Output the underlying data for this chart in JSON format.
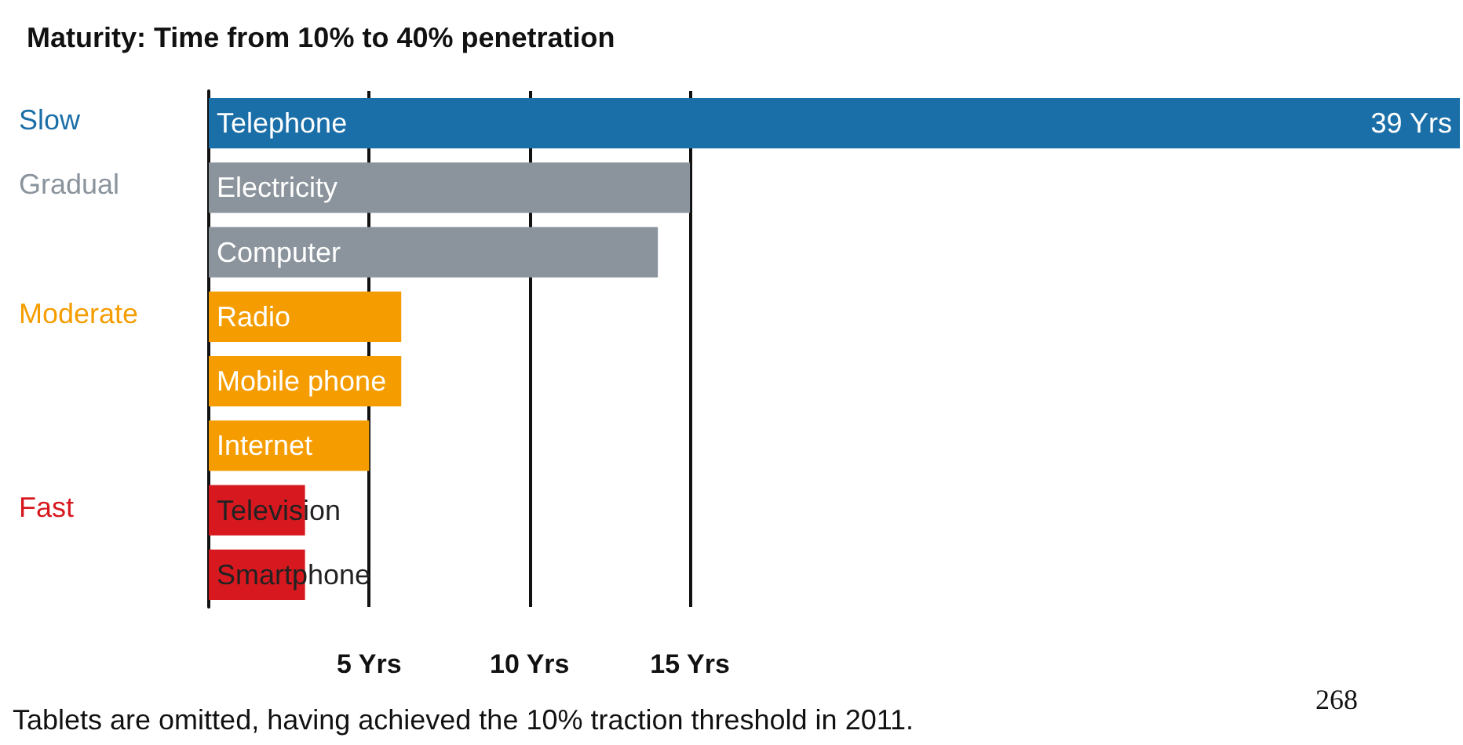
{
  "chart_data": {
    "type": "bar",
    "orientation": "horizontal",
    "title": "Maturity: Time from 10% to 40% penetration",
    "categories": [
      "Telephone",
      "Electricity",
      "Computer",
      "Radio",
      "Mobile phone",
      "Internet",
      "Television",
      "Smartphone"
    ],
    "values": [
      39,
      15,
      14,
      6,
      6,
      5,
      3,
      3
    ],
    "colors": [
      "#1b6fa8",
      "#8b949c",
      "#8b949c",
      "#f59d00",
      "#f59d00",
      "#f59d00",
      "#d7191f",
      "#d7191f"
    ],
    "value_labels": [
      "39 Yrs",
      null,
      null,
      null,
      null,
      null,
      null,
      null
    ],
    "xlim": [
      0,
      39
    ],
    "xticks": [
      {
        "value": 5,
        "label": "5 Yrs"
      },
      {
        "value": 10,
        "label": "10 Yrs"
      },
      {
        "value": 15,
        "label": "15 Yrs"
      }
    ],
    "grid": "x",
    "annotations": [
      "Slow",
      "Gradual",
      "Moderate",
      "Fast",
      "Tablets are omitted, having achieved the 10% traction threshold in 2011.",
      "268"
    ]
  }
}
